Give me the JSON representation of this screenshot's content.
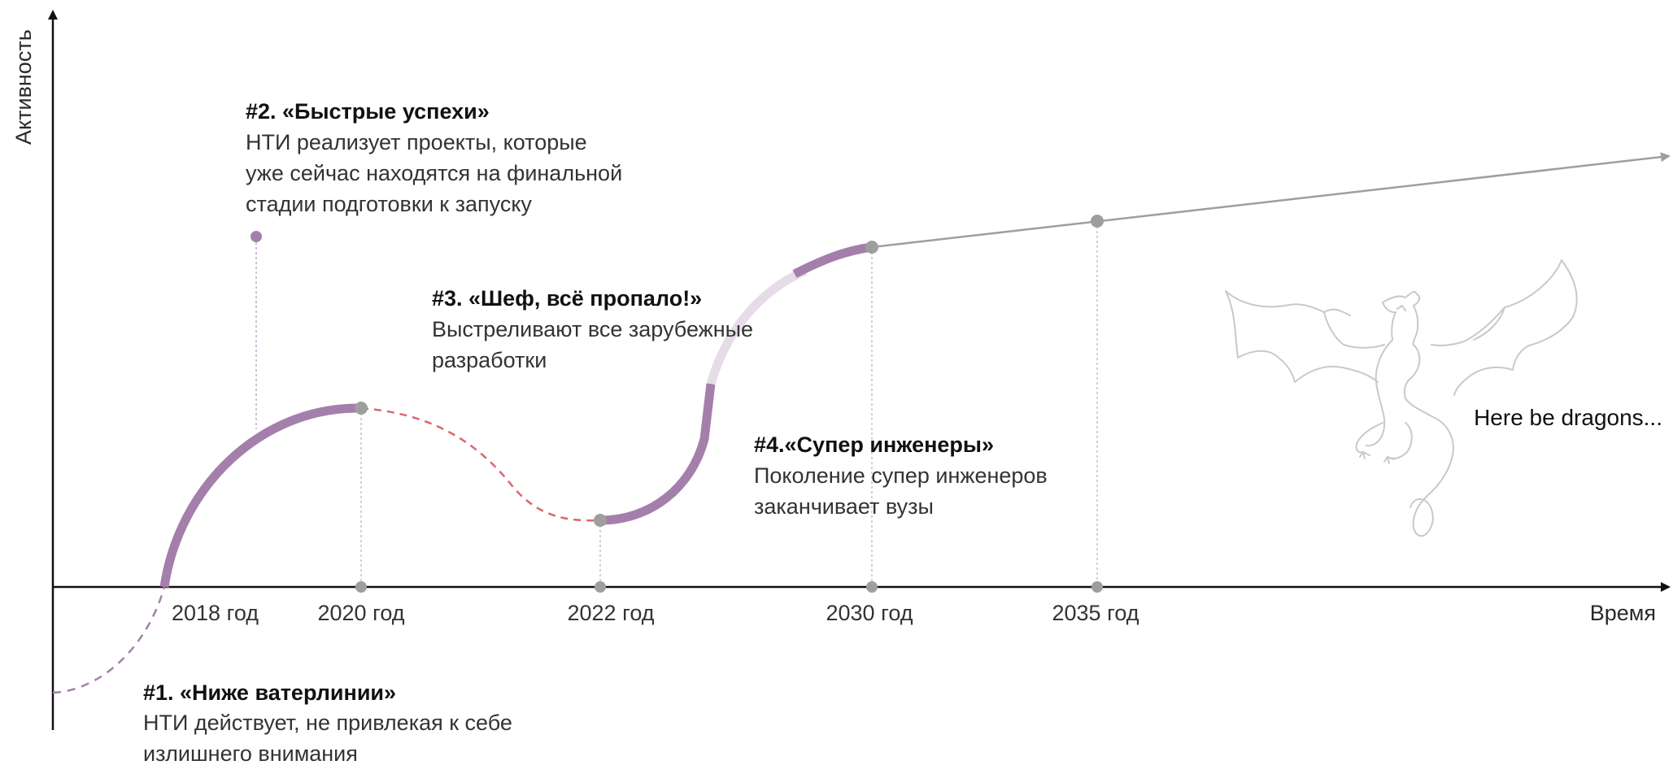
{
  "axes": {
    "y_label": "Активность",
    "x_label": "Время"
  },
  "timeline": [
    {
      "key": "y2018",
      "label": "2018 год"
    },
    {
      "key": "y2020",
      "label": "2020 год"
    },
    {
      "key": "y2022",
      "label": "2022 год"
    },
    {
      "key": "y2030",
      "label": "2030 год"
    },
    {
      "key": "y2035",
      "label": "2035 год"
    }
  ],
  "phases": [
    {
      "id": "phase1",
      "title": "#1. «Ниже ватерлинии»",
      "lines": [
        "НТИ действует, не привлекая к себе",
        "излишнего внимания"
      ]
    },
    {
      "id": "phase2",
      "title": "#2. «Быстрые успехи»",
      "lines": [
        "НТИ реализует проекты, которые",
        "уже сейчас находятся на финальной",
        "стадии подготовки к запуску"
      ]
    },
    {
      "id": "phase3",
      "title": "#3. «Шеф, всё пропало!»",
      "lines": [
        "Выстреливают все зарубежные",
        "разработки"
      ]
    },
    {
      "id": "phase4",
      "title": "#4.«Супер инженеры»",
      "lines": [
        "Поколение супер инженеров",
        "заканчивает вузы"
      ]
    }
  ],
  "dragon": {
    "caption": "Here be dragons...",
    "icon": "dragon-icon"
  },
  "colors": {
    "axis": "#111111",
    "curve": "#a57fac",
    "curve_faded": "#e6dce8",
    "dip": "#d9666f",
    "below_water": "#a57fac",
    "future": "#9e9e9e",
    "marker": "#9e9e9e",
    "dragon": "#c9c9c9"
  }
}
